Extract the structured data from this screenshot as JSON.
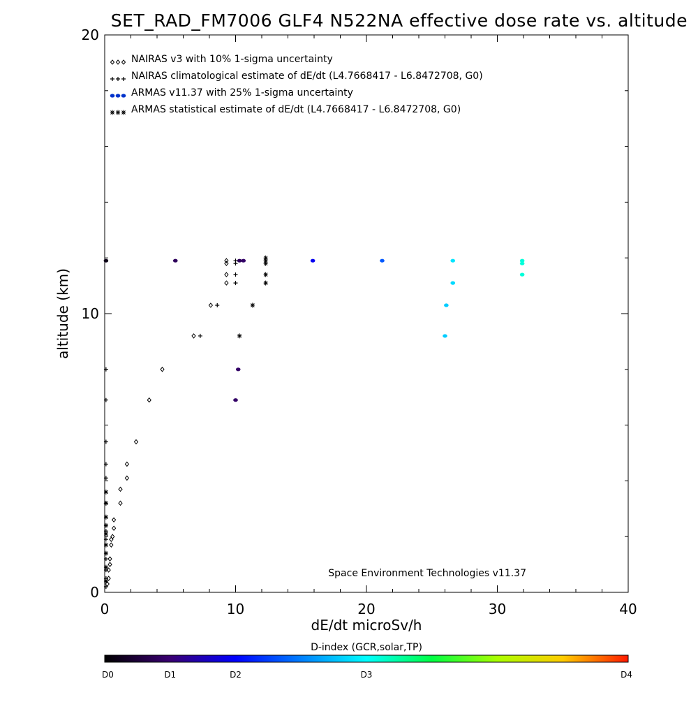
{
  "chart_data": {
    "type": "scatter",
    "title": "SET_RAD_FM7006  GLF4 N522NA effective dose rate vs. altitude",
    "xlabel": "dE/dt microSv/h",
    "ylabel": "altitude (km)",
    "xlim": [
      0,
      40
    ],
    "ylim": [
      0,
      20
    ],
    "x_ticks": [
      "0",
      "10",
      "20",
      "30",
      "40"
    ],
    "y_ticks": [
      "0",
      "10",
      "20"
    ],
    "grid": false,
    "legend_position": "top-left",
    "annotation": "Space Environment Technologies v11.37",
    "colorbar": {
      "title": "D-index (GCR,solar,TP)",
      "labels": [
        "D0",
        "D1",
        "D2",
        "D3",
        "D4"
      ],
      "label_positions": [
        0,
        1,
        2,
        4,
        8
      ]
    },
    "series": [
      {
        "name": "NAIRAS v3 with 10% 1-sigma uncertainty",
        "marker": "diamond",
        "color": "#000000",
        "points": [
          [
            0.2,
            0.3
          ],
          [
            0.3,
            0.5
          ],
          [
            0.3,
            0.8
          ],
          [
            0.4,
            1.0
          ],
          [
            0.4,
            1.2
          ],
          [
            0.5,
            1.7
          ],
          [
            0.5,
            1.9
          ],
          [
            0.6,
            2.0
          ],
          [
            0.7,
            2.3
          ],
          [
            0.7,
            2.6
          ],
          [
            1.2,
            3.2
          ],
          [
            1.2,
            3.7
          ],
          [
            1.7,
            4.1
          ],
          [
            1.7,
            4.6
          ],
          [
            2.4,
            5.4
          ],
          [
            3.4,
            6.9
          ],
          [
            4.4,
            8.0
          ],
          [
            6.8,
            9.2
          ],
          [
            8.1,
            10.3
          ],
          [
            9.3,
            11.1
          ],
          [
            9.3,
            11.4
          ],
          [
            9.3,
            11.8
          ],
          [
            9.3,
            11.9
          ]
        ]
      },
      {
        "name": "NAIRAS climatological estimate of dE/dt (L4.7668417 - L6.8472708, G0)",
        "marker": "plus",
        "color": "#000000",
        "points": [
          [
            0.1,
            0.2
          ],
          [
            0.1,
            0.5
          ],
          [
            0.1,
            0.8
          ],
          [
            0.1,
            1.2
          ],
          [
            0.1,
            1.9
          ],
          [
            0.1,
            2.2
          ],
          [
            0.1,
            3.2
          ],
          [
            0.1,
            4.1
          ],
          [
            0.1,
            4.6
          ],
          [
            0.1,
            5.4
          ],
          [
            0.1,
            6.9
          ],
          [
            0.1,
            8.0
          ],
          [
            7.3,
            9.2
          ],
          [
            8.6,
            10.3
          ],
          [
            10.0,
            11.1
          ],
          [
            10.0,
            11.4
          ],
          [
            10.0,
            11.8
          ],
          [
            10.0,
            11.9
          ]
        ]
      },
      {
        "name": "ARMAS v11.37 with 25% 1-sigma uncertainty",
        "marker": "dot",
        "color": "#0033cc",
        "points": [
          [
            0.1,
            11.9,
            0.2
          ],
          [
            5.4,
            11.9,
            0.8
          ],
          [
            10.0,
            6.9,
            0.9
          ],
          [
            10.2,
            8.0,
            0.9
          ],
          [
            10.3,
            11.9,
            0.8
          ],
          [
            10.6,
            11.9,
            0.9
          ],
          [
            15.9,
            11.9,
            1.9
          ],
          [
            21.2,
            11.9,
            2.7
          ],
          [
            26.0,
            9.2,
            3.6
          ],
          [
            26.1,
            10.3,
            3.6
          ],
          [
            26.6,
            11.1,
            3.7
          ],
          [
            26.6,
            11.9,
            3.8
          ],
          [
            31.9,
            11.4,
            4.2
          ],
          [
            31.9,
            11.8,
            4.2
          ],
          [
            31.9,
            11.9,
            4.2
          ]
        ]
      },
      {
        "name": "ARMAS statistical estimate of dE/dt (L4.7668417 - L6.8472708, G0)",
        "marker": "asterisk",
        "color": "#000000",
        "points": [
          [
            0.1,
            0.4
          ],
          [
            0.1,
            0.9
          ],
          [
            0.1,
            1.4
          ],
          [
            0.1,
            1.7
          ],
          [
            0.1,
            2.1
          ],
          [
            0.1,
            2.4
          ],
          [
            0.1,
            2.7
          ],
          [
            0.1,
            3.2
          ],
          [
            0.1,
            3.6
          ],
          [
            10.3,
            9.2
          ],
          [
            11.3,
            10.3
          ],
          [
            12.3,
            11.1
          ],
          [
            12.3,
            11.4
          ],
          [
            12.3,
            11.8
          ],
          [
            12.3,
            11.9
          ],
          [
            12.3,
            12.0
          ]
        ]
      }
    ]
  }
}
